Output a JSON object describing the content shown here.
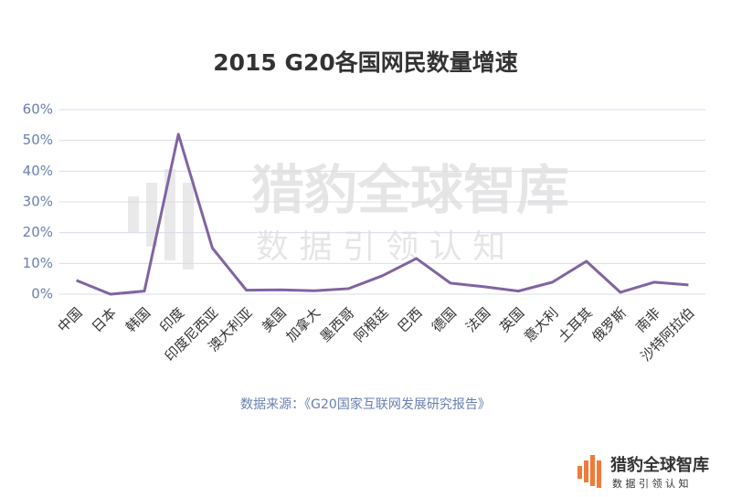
{
  "chart_data": {
    "type": "line",
    "title": "2015 G20各国网民数量增速",
    "categories": [
      "中国",
      "日本",
      "韩国",
      "印度",
      "印度尼西亚",
      "澳大利亚",
      "美国",
      "加拿大",
      "墨西哥",
      "阿根廷",
      "巴西",
      "德国",
      "法国",
      "英国",
      "意大利",
      "土耳其",
      "俄罗斯",
      "南非",
      "沙特阿拉伯"
    ],
    "series": [
      {
        "name": "网民数量增速",
        "color": "#8064a2",
        "values": [
          4.5,
          0,
          1,
          52,
          15,
          1.3,
          1.4,
          1.1,
          1.8,
          6,
          11.6,
          3.6,
          2.4,
          1,
          3.9,
          10.7,
          0.6,
          3.9,
          3
        ]
      }
    ],
    "ylim": [
      0,
      60
    ],
    "yticks": [
      {
        "value": 0,
        "label": "0%"
      },
      {
        "value": 10,
        "label": "10%"
      },
      {
        "value": 20,
        "label": "20%"
      },
      {
        "value": 30,
        "label": "30%"
      },
      {
        "value": 40,
        "label": "40%"
      },
      {
        "value": 50,
        "label": "50%"
      },
      {
        "value": 60,
        "label": "60%"
      }
    ],
    "grid": true,
    "source": "数据来源：《G20国家互联网发展研究报告》"
  },
  "logo": {
    "name": "猎豹全球智库",
    "slogan": "数 据 引 领 认 知"
  }
}
